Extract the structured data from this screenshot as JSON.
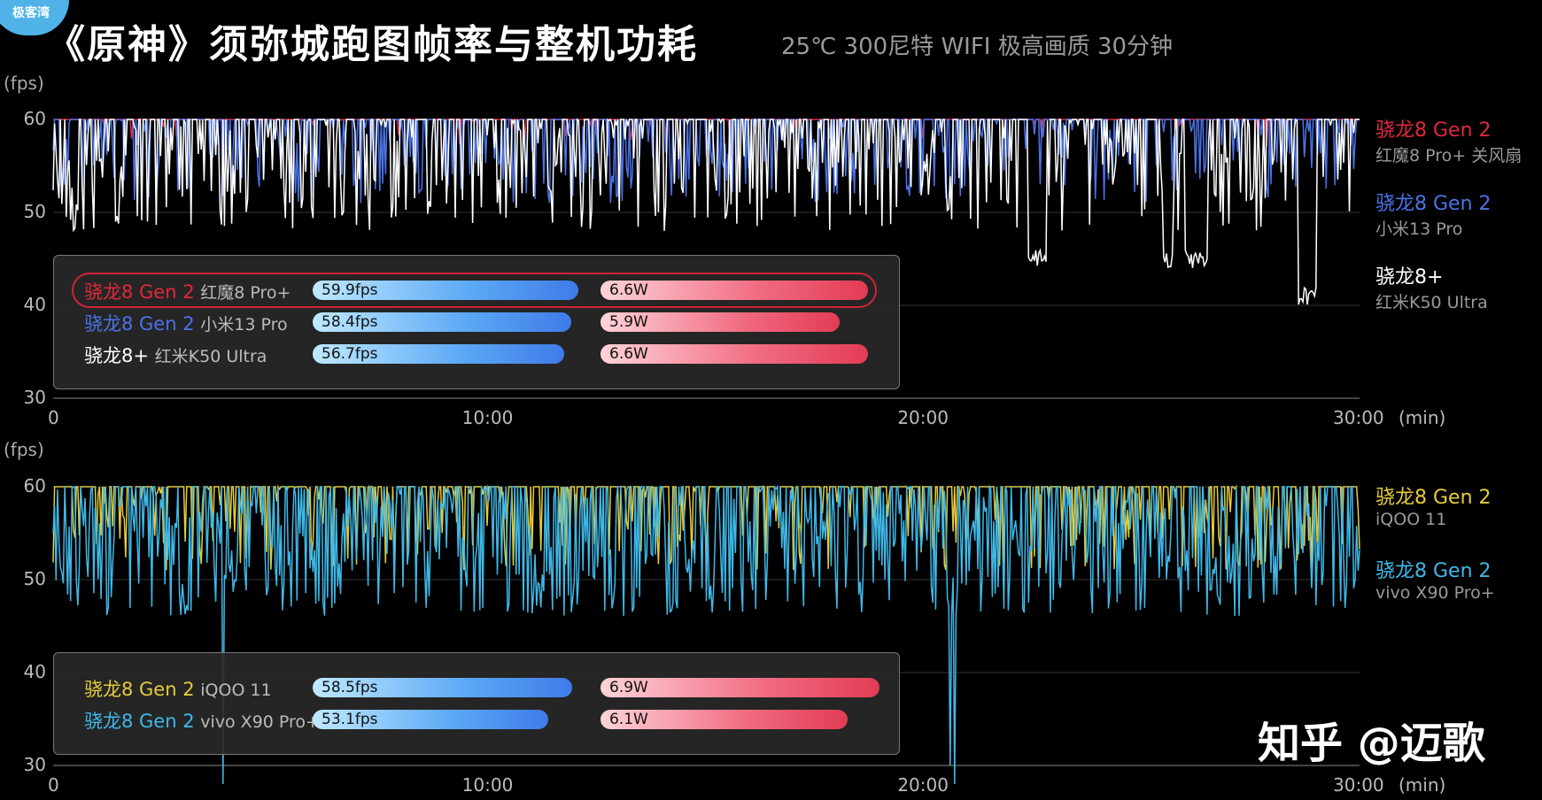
{
  "header": {
    "badge": "极客湾",
    "title": "《原神》须弥城跑图帧率与整机功耗",
    "subtitle": "25℃ 300尼特 WIFI 极高画质 30分钟"
  },
  "watermark": "知乎 @迈歌",
  "colors": {
    "red": "#e0283c",
    "blue": "#4a73e8",
    "white": "#ffffff",
    "yellow": "#e6cc3a",
    "cyan": "#3fb8e8",
    "grid": "#3a3a3a"
  },
  "chart_data": [
    {
      "type": "line",
      "ylabel": "(fps)",
      "xlabel": "(min)",
      "yticks": [
        "60",
        "50",
        "40",
        "30"
      ],
      "xticks": [
        "0",
        "10:00",
        "20:00",
        "30:00"
      ],
      "ylim": [
        30,
        60
      ],
      "xlim": [
        0,
        30
      ],
      "series": [
        {
          "name": "骁龙8 Gen 2",
          "device": "红魔8 Pro+ 关风扇",
          "color": "#e0283c",
          "base": 59.9,
          "jitter": 0.04,
          "dip": 3,
          "seed": 11
        },
        {
          "name": "骁龙8 Gen 2",
          "device": "小米13 Pro",
          "color": "#4a73e8",
          "base": 58.4,
          "jitter": 0.35,
          "dip": 9,
          "seed": 23
        },
        {
          "name": "骁龙8+",
          "device": "红米K50 Ultra",
          "color": "#ffffff",
          "base": 56.7,
          "jitter": 0.45,
          "dip": 12,
          "seed": 37,
          "segments": [
            {
              "from": 22.4,
              "to": 22.8,
              "level": 44
            },
            {
              "from": 25.5,
              "to": 25.7,
              "level": 44
            },
            {
              "from": 26.0,
              "to": 26.5,
              "level": 44
            },
            {
              "from": 28.6,
              "to": 29.0,
              "level": 40
            }
          ]
        }
      ],
      "summary": [
        {
          "name": "骁龙8 Gen 2",
          "device": "红魔8 Pro+",
          "fps": "59.9fps",
          "fps_value": 59.9,
          "power": "6.6W",
          "power_value": 6.6,
          "highlight": true
        },
        {
          "name": "骁龙8 Gen 2",
          "device": "小米13 Pro",
          "fps": "58.4fps",
          "fps_value": 58.4,
          "power": "5.9W",
          "power_value": 5.9,
          "highlight": false
        },
        {
          "name": "骁龙8+",
          "device": "红米K50 Ultra",
          "fps": "56.7fps",
          "fps_value": 56.7,
          "power": "6.6W",
          "power_value": 6.6,
          "highlight": false
        }
      ]
    },
    {
      "type": "line",
      "ylabel": "(fps)",
      "xlabel": "(min)",
      "yticks": [
        "60",
        "50",
        "40",
        "30"
      ],
      "xticks": [
        "0",
        "10:00",
        "20:00",
        "30:00"
      ],
      "ylim": [
        30,
        60
      ],
      "xlim": [
        0,
        30
      ],
      "series": [
        {
          "name": "骁龙8 Gen 2",
          "device": "iQOO 11",
          "color": "#e6cc3a",
          "base": 58.5,
          "jitter": 0.3,
          "dip": 9,
          "seed": 51
        },
        {
          "name": "骁龙8 Gen 2",
          "device": "vivo X90 Pro+",
          "color": "#3fb8e8",
          "base": 53.1,
          "jitter": 0.7,
          "dip": 14,
          "seed": 67,
          "spikes": [
            {
              "at": 3.9,
              "level": 28
            },
            {
              "at": 20.6,
              "level": 30
            },
            {
              "at": 20.7,
              "level": 28
            }
          ]
        }
      ],
      "summary": [
        {
          "name": "骁龙8 Gen 2",
          "device": "iQOO 11",
          "fps": "58.5fps",
          "fps_value": 58.5,
          "power": "6.9W",
          "power_value": 6.9,
          "highlight": false
        },
        {
          "name": "骁龙8 Gen 2",
          "device": "vivo X90 Pro+",
          "fps": "53.1fps",
          "fps_value": 53.1,
          "power": "6.1W",
          "power_value": 6.1,
          "highlight": false
        }
      ]
    }
  ]
}
